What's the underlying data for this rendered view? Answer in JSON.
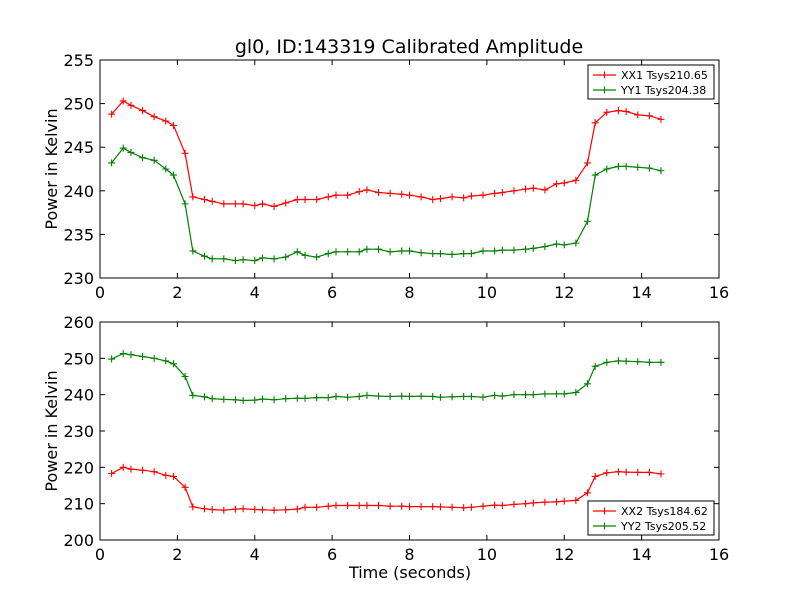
{
  "chart_data": {
    "title": "gl0, ID:143319 Calibrated Amplitude",
    "xlabel": "Time (seconds)",
    "panels": [
      {
        "type": "line",
        "ylabel": "Power in Kelvin",
        "xlim": [
          0,
          16
        ],
        "ylim": [
          230,
          255
        ],
        "xticks": [
          0,
          2,
          4,
          6,
          8,
          10,
          12,
          14,
          16
        ],
        "yticks": [
          230,
          235,
          240,
          245,
          250,
          255
        ],
        "legend_position": "top-right",
        "series": [
          {
            "name": "XX1 Tsys210.65",
            "color": "#ff0000",
            "x": [
              0.3,
              0.6,
              0.8,
              1.1,
              1.4,
              1.7,
              1.9,
              2.2,
              2.4,
              2.7,
              2.9,
              3.2,
              3.5,
              3.7,
              4.0,
              4.2,
              4.5,
              4.8,
              5.1,
              5.3,
              5.6,
              5.9,
              6.1,
              6.4,
              6.7,
              6.9,
              7.2,
              7.5,
              7.8,
              8.0,
              8.3,
              8.6,
              8.8,
              9.1,
              9.4,
              9.6,
              9.9,
              10.2,
              10.4,
              10.7,
              11.0,
              11.2,
              11.5,
              11.8,
              12.0,
              12.3,
              12.6,
              12.8,
              13.1,
              13.4,
              13.6,
              13.9,
              14.2,
              14.5
            ],
            "y": [
              248.8,
              250.3,
              249.8,
              249.2,
              248.5,
              248.0,
              247.5,
              244.3,
              239.3,
              239.0,
              238.8,
              238.5,
              238.5,
              238.5,
              238.3,
              238.5,
              238.2,
              238.6,
              239.0,
              239.0,
              239.0,
              239.3,
              239.5,
              239.5,
              239.9,
              240.1,
              239.8,
              239.7,
              239.6,
              239.5,
              239.3,
              239.0,
              239.1,
              239.3,
              239.2,
              239.4,
              239.5,
              239.7,
              239.8,
              240.0,
              240.2,
              240.3,
              240.1,
              240.8,
              240.9,
              241.2,
              243.2,
              247.8,
              249.0,
              249.2,
              249.1,
              248.7,
              248.6,
              248.2
            ]
          },
          {
            "name": "YY1 Tsys204.38",
            "color": "#008000",
            "x": [
              0.3,
              0.6,
              0.8,
              1.1,
              1.4,
              1.7,
              1.9,
              2.2,
              2.4,
              2.7,
              2.9,
              3.2,
              3.5,
              3.7,
              4.0,
              4.2,
              4.5,
              4.8,
              5.1,
              5.3,
              5.6,
              5.9,
              6.1,
              6.4,
              6.7,
              6.9,
              7.2,
              7.5,
              7.8,
              8.0,
              8.3,
              8.6,
              8.8,
              9.1,
              9.4,
              9.6,
              9.9,
              10.2,
              10.4,
              10.7,
              11.0,
              11.2,
              11.5,
              11.8,
              12.0,
              12.3,
              12.6,
              12.8,
              13.1,
              13.4,
              13.6,
              13.9,
              14.2,
              14.5
            ],
            "y": [
              243.2,
              244.9,
              244.4,
              243.8,
              243.5,
              242.5,
              241.8,
              238.5,
              233.1,
              232.5,
              232.2,
              232.2,
              232.0,
              232.1,
              232.0,
              232.3,
              232.2,
              232.4,
              233.0,
              232.6,
              232.4,
              232.8,
              233.0,
              233.0,
              233.0,
              233.3,
              233.3,
              233.0,
              233.1,
              233.1,
              232.9,
              232.8,
              232.8,
              232.7,
              232.8,
              232.8,
              233.1,
              233.1,
              233.2,
              233.2,
              233.3,
              233.4,
              233.6,
              233.9,
              233.8,
              234.0,
              236.5,
              241.8,
              242.5,
              242.8,
              242.8,
              242.7,
              242.6,
              242.3
            ]
          }
        ]
      },
      {
        "type": "line",
        "ylabel": "Power in Kelvin",
        "xlim": [
          0,
          16
        ],
        "ylim": [
          200,
          260
        ],
        "xticks": [
          0,
          2,
          4,
          6,
          8,
          10,
          12,
          14,
          16
        ],
        "yticks": [
          200,
          210,
          220,
          230,
          240,
          250,
          260
        ],
        "legend_position": "bottom-right",
        "series": [
          {
            "name": "XX2 Tsys184.62",
            "color": "#ff0000",
            "x": [
              0.3,
              0.6,
              0.8,
              1.1,
              1.4,
              1.7,
              1.9,
              2.2,
              2.4,
              2.7,
              2.9,
              3.2,
              3.5,
              3.7,
              4.0,
              4.2,
              4.5,
              4.8,
              5.1,
              5.3,
              5.6,
              5.9,
              6.1,
              6.4,
              6.7,
              6.9,
              7.2,
              7.5,
              7.8,
              8.0,
              8.3,
              8.6,
              8.8,
              9.1,
              9.4,
              9.6,
              9.9,
              10.2,
              10.4,
              10.7,
              11.0,
              11.2,
              11.5,
              11.8,
              12.0,
              12.3,
              12.6,
              12.8,
              13.1,
              13.4,
              13.6,
              13.9,
              14.2,
              14.5
            ],
            "y": [
              218.3,
              220.0,
              219.5,
              219.2,
              218.8,
              217.8,
              217.5,
              214.5,
              209.1,
              208.6,
              208.4,
              208.2,
              208.5,
              208.6,
              208.4,
              208.3,
              208.2,
              208.3,
              208.5,
              209.0,
              209.0,
              209.3,
              209.5,
              209.5,
              209.5,
              209.5,
              209.5,
              209.3,
              209.3,
              209.2,
              209.2,
              209.2,
              209.1,
              209.0,
              208.9,
              209.0,
              209.3,
              209.6,
              209.5,
              209.8,
              210.0,
              210.2,
              210.4,
              210.5,
              210.7,
              210.9,
              213.0,
              217.5,
              218.5,
              218.8,
              218.7,
              218.6,
              218.6,
              218.2
            ]
          },
          {
            "name": "YY2 Tsys205.52",
            "color": "#008000",
            "x": [
              0.3,
              0.6,
              0.8,
              1.1,
              1.4,
              1.7,
              1.9,
              2.2,
              2.4,
              2.7,
              2.9,
              3.2,
              3.5,
              3.7,
              4.0,
              4.2,
              4.5,
              4.8,
              5.1,
              5.3,
              5.6,
              5.9,
              6.1,
              6.4,
              6.7,
              6.9,
              7.2,
              7.5,
              7.8,
              8.0,
              8.3,
              8.6,
              8.8,
              9.1,
              9.4,
              9.6,
              9.9,
              10.2,
              10.4,
              10.7,
              11.0,
              11.2,
              11.5,
              11.8,
              12.0,
              12.3,
              12.6,
              12.8,
              13.1,
              13.4,
              13.6,
              13.9,
              14.2,
              14.5
            ],
            "y": [
              249.8,
              251.3,
              251.0,
              250.5,
              250.0,
              249.3,
              248.5,
              245.0,
              239.8,
              239.4,
              238.9,
              238.7,
              238.6,
              238.4,
              238.5,
              238.8,
              238.6,
              238.9,
              239.0,
              239.0,
              239.2,
              239.2,
              239.5,
              239.3,
              239.5,
              239.8,
              239.6,
              239.5,
              239.6,
              239.5,
              239.6,
              239.5,
              239.3,
              239.4,
              239.5,
              239.5,
              239.3,
              239.8,
              239.6,
              240.0,
              240.0,
              240.0,
              240.2,
              240.2,
              240.2,
              240.6,
              243.0,
              247.8,
              248.9,
              249.3,
              249.2,
              249.1,
              248.9,
              248.9
            ]
          }
        ]
      }
    ]
  }
}
